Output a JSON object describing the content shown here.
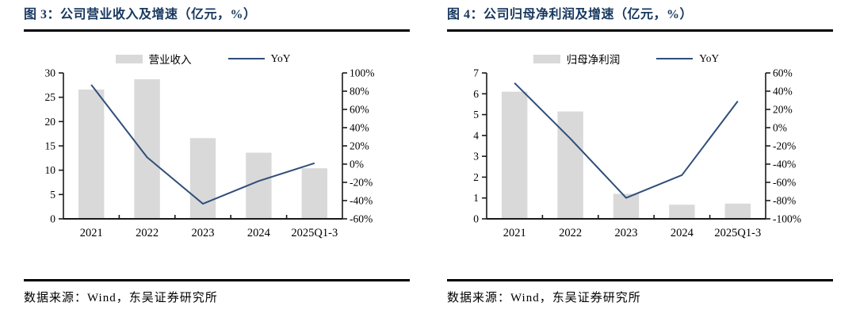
{
  "colors": {
    "bar": "#d9d9d9",
    "line": "#2f4e79",
    "title": "#17375e",
    "axis": "#1a1a1a"
  },
  "chart_data": [
    {
      "type": "bar+line",
      "title": "图 3：公司营业收入及增速（亿元，%）",
      "categories": [
        "2021",
        "2022",
        "2023",
        "2024",
        "2025Q1-3"
      ],
      "bar_series": {
        "name": "营业收入",
        "axis": "left",
        "values": [
          26.6,
          28.7,
          16.6,
          13.6,
          10.4
        ]
      },
      "line_series": {
        "name": "YoY",
        "axis": "right",
        "values": [
          87,
          7.5,
          -43.5,
          -18.5,
          1
        ]
      },
      "left_axis": {
        "min": 0,
        "max": 30,
        "step": 5
      },
      "right_axis": {
        "min": -60,
        "max": 100,
        "step": 20,
        "suffix": "%"
      },
      "legend_position": "top",
      "grid": false,
      "source": "数据来源：Wind，东吴证券研究所"
    },
    {
      "type": "bar+line",
      "title": "图 4：公司归母净利润及增速（亿元，%）",
      "categories": [
        "2021",
        "2022",
        "2023",
        "2024",
        "2025Q1-3"
      ],
      "bar_series": {
        "name": "归母净利润",
        "axis": "left",
        "values": [
          6.1,
          5.15,
          1.2,
          0.68,
          0.73
        ]
      },
      "line_series": {
        "name": "YoY",
        "axis": "right",
        "values": [
          49,
          -12,
          -77,
          -52,
          29
        ]
      },
      "left_axis": {
        "min": 0,
        "max": 7,
        "step": 1
      },
      "right_axis": {
        "min": -100,
        "max": 60,
        "step": 20,
        "suffix": "%"
      },
      "legend_position": "top",
      "grid": false,
      "source": "数据来源：Wind，东吴证券研究所"
    }
  ]
}
